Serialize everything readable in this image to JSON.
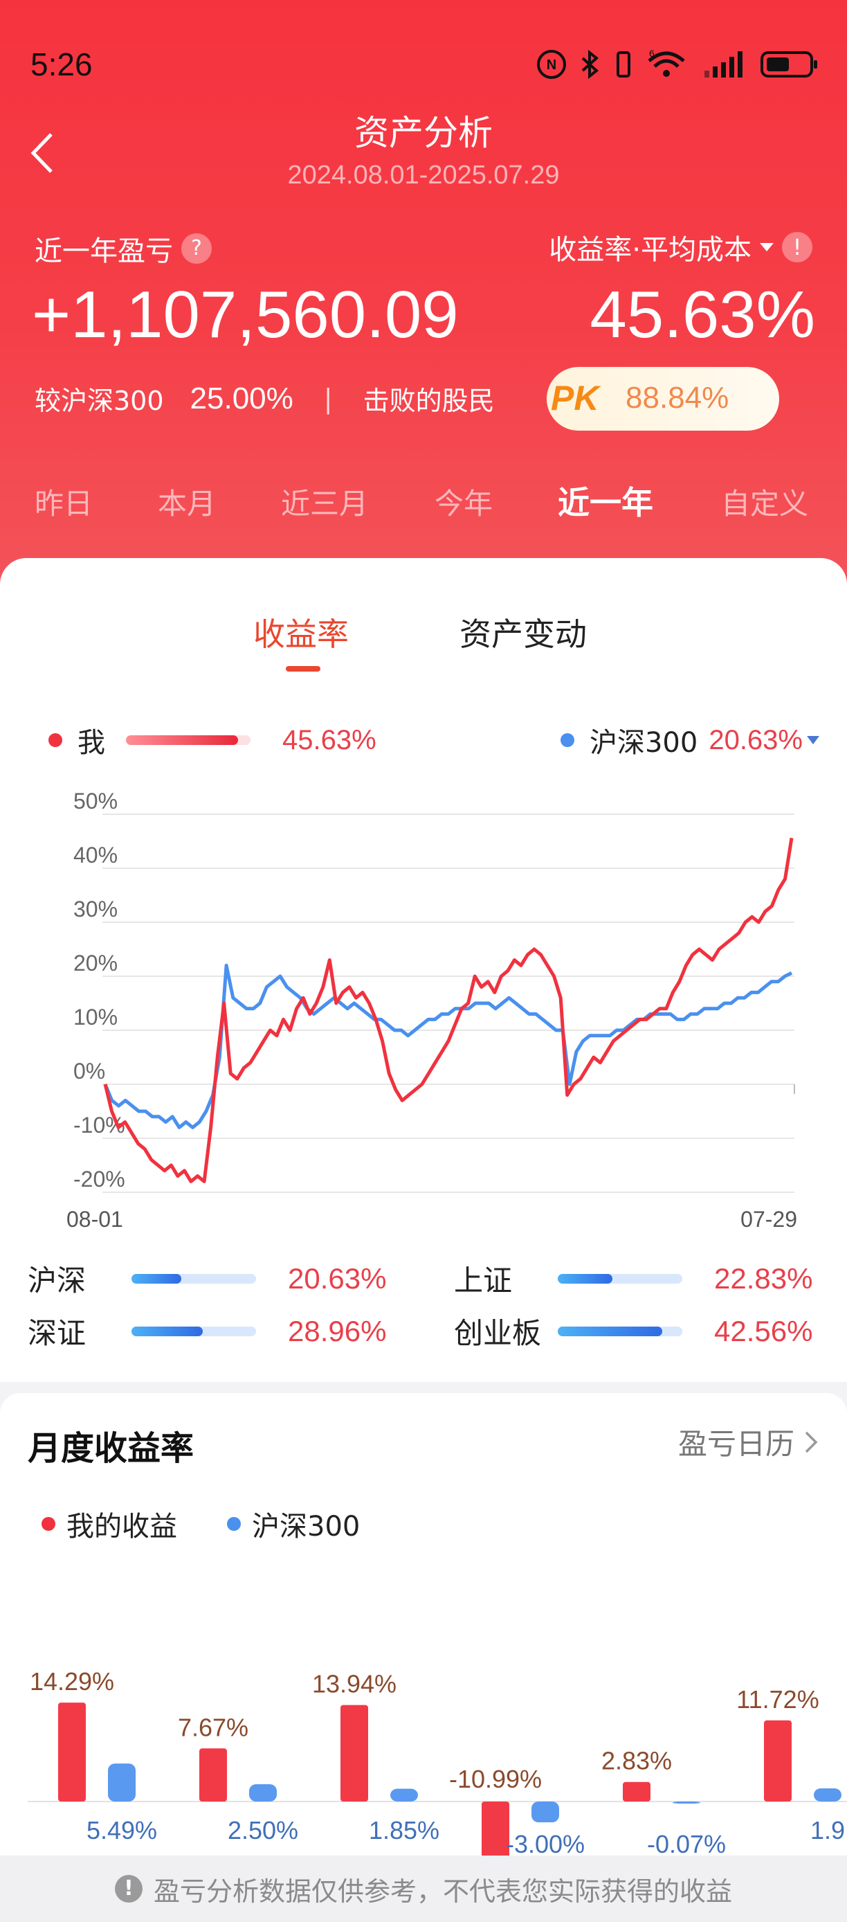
{
  "status_bar": {
    "time": "5:26",
    "icons": [
      "nfc-icon",
      "bluetooth-icon",
      "vibrate-icon",
      "wifi-icon",
      "signal-icon",
      "battery-icon"
    ],
    "wifi_tag": "6"
  },
  "header": {
    "title": "资产分析",
    "date_range": "2024.08.01-2025.07.29",
    "pnl_label": "近一年盈亏",
    "pnl_value": "+1,107,560.09",
    "rate_label": "收益率·平均成本",
    "rate_value": "45.63%",
    "compare_label": "较沪深300",
    "compare_value": "25.00%",
    "separator": "|",
    "beat_label": "击败的股民",
    "beat_badge": "PK",
    "beat_value": "88.84%",
    "question_mark": "?",
    "exclamation": "!"
  },
  "periods": [
    {
      "label": "昨日",
      "active": false
    },
    {
      "label": "本月",
      "active": false
    },
    {
      "label": "近三月",
      "active": false
    },
    {
      "label": "今年",
      "active": false
    },
    {
      "label": "近一年",
      "active": true
    },
    {
      "label": "自定义",
      "active": false
    }
  ],
  "tabs": {
    "rate": "收益率",
    "asset": "资产变动",
    "active": "rate"
  },
  "legend": {
    "me_label": "我",
    "me_value": "45.63%",
    "me_bar_fraction": 0.9,
    "bench_label": "沪深300",
    "bench_value": "20.63%"
  },
  "colors": {
    "me": "#f0323f",
    "bench": "#4a90ee",
    "accent": "#e9472f",
    "header_red": "#f5333f"
  },
  "chart_data": [
    {
      "type": "line",
      "y_ticks": [
        "50%",
        "40%",
        "30%",
        "20%",
        "10%",
        "0%",
        "-10%",
        "-20%"
      ],
      "ylim": [
        -20,
        50
      ],
      "x_labels": [
        "08-01",
        "07-29"
      ],
      "grid": true,
      "series": [
        {
          "name": "我",
          "values": [
            0,
            -5,
            -8,
            -7,
            -9,
            -11,
            -12,
            -14,
            -15,
            -16,
            -15,
            -17,
            -16,
            -18,
            -17,
            -18,
            -8,
            5,
            15,
            2,
            1,
            3,
            4,
            6,
            8,
            10,
            9,
            12,
            10,
            14,
            16,
            13,
            15,
            18,
            23,
            15,
            17,
            18,
            16,
            17,
            15,
            12,
            8,
            2,
            -1,
            -3,
            -2,
            -1,
            0,
            2,
            4,
            6,
            8,
            11,
            14,
            15,
            20,
            18,
            19,
            17,
            20,
            21,
            23,
            22,
            24,
            25,
            24,
            22,
            20,
            16,
            -2,
            0,
            1,
            3,
            5,
            4,
            6,
            8,
            9,
            10,
            11,
            12,
            12,
            13,
            14,
            14,
            17,
            19,
            22,
            24,
            25,
            24,
            23,
            25,
            26,
            27,
            28,
            30,
            31,
            30,
            32,
            33,
            36,
            38,
            45.6
          ]
        },
        {
          "name": "沪深300",
          "values": [
            0,
            -3,
            -4,
            -3,
            -4,
            -5,
            -5,
            -6,
            -6,
            -7,
            -6,
            -8,
            -7,
            -8,
            -7,
            -5,
            -2,
            5,
            22,
            16,
            15,
            14,
            14,
            15,
            18,
            19,
            20,
            18,
            17,
            16,
            14,
            13,
            14,
            15,
            16,
            15,
            14,
            15,
            14,
            13,
            12,
            12,
            11,
            10,
            10,
            9,
            10,
            11,
            12,
            12,
            13,
            13,
            14,
            14,
            14,
            15,
            15,
            15,
            14,
            15,
            16,
            15,
            14,
            13,
            13,
            12,
            11,
            10,
            10,
            0,
            6,
            8,
            9,
            9,
            9,
            9,
            10,
            10,
            11,
            12,
            12,
            13,
            13,
            13,
            13,
            12,
            12,
            13,
            13,
            14,
            14,
            14,
            15,
            15,
            16,
            16,
            17,
            17,
            18,
            19,
            19,
            20,
            20.6
          ]
        }
      ]
    },
    {
      "type": "bar",
      "title": "月度收益率",
      "series": [
        {
          "name": "我的收益",
          "values": [
            14.29,
            7.67,
            13.94,
            -10.99,
            2.83,
            11.72
          ],
          "labels": [
            "14.29%",
            "7.67%",
            "13.94%",
            "-10.99%",
            "2.83%",
            "11.72%"
          ]
        },
        {
          "name": "沪深300",
          "values": [
            5.49,
            2.5,
            1.85,
            -3.0,
            -0.07,
            1.9
          ],
          "labels": [
            "5.49%",
            "2.50%",
            "1.85%",
            "-3.00%",
            "-0.07%",
            "1.9"
          ]
        }
      ]
    }
  ],
  "indices": [
    {
      "name": "沪深",
      "value": "20.63%",
      "fraction": 0.4
    },
    {
      "name": "上证",
      "value": "22.83%",
      "fraction": 0.44
    },
    {
      "name": "深证",
      "value": "28.96%",
      "fraction": 0.57
    },
    {
      "name": "创业板",
      "value": "42.56%",
      "fraction": 0.84
    }
  ],
  "monthly": {
    "title": "月度收益率",
    "calendar_link": "盈亏日历",
    "legend_me": "我的收益",
    "legend_bench": "沪深300"
  },
  "footer": {
    "icon": "!",
    "text": "盈亏分析数据仅供参考，不代表您实际获得的收益"
  }
}
